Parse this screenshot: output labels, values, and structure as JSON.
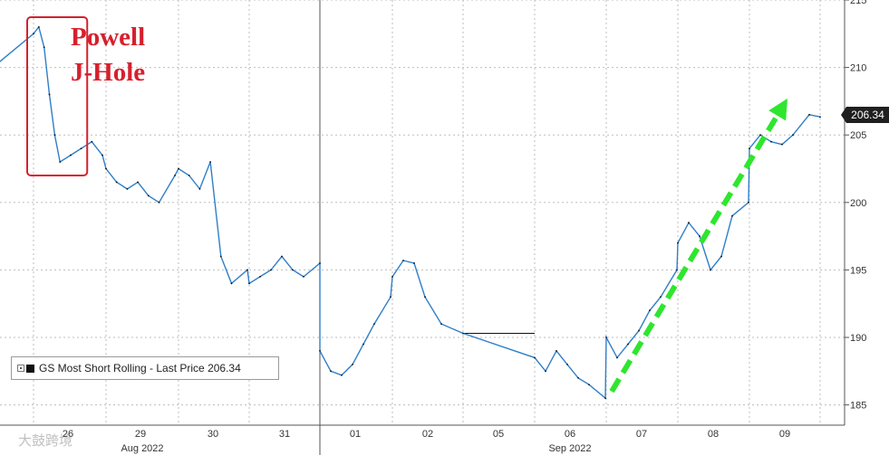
{
  "chart_data": {
    "type": "line",
    "title": "",
    "xlabel": "",
    "ylabel": "",
    "ylim": [
      183.5,
      215
    ],
    "y_ticks": [
      185,
      190,
      195,
      200,
      205,
      210,
      215
    ],
    "y_axis_side": "right",
    "grid": true,
    "legend_position": "bottom-left",
    "x_tick_labels": [
      "26",
      "29",
      "30",
      "31",
      "01",
      "02",
      "05",
      "06",
      "07",
      "08",
      "09"
    ],
    "x_month_labels": [
      "Aug 2022",
      "Sep 2022"
    ],
    "series": [
      {
        "name": "GS Most Short Rolling - Last Price 206.34",
        "color": "#2f7fc8",
        "x": [
          "2022-08-25 10:00",
          "2022-08-25 12:00",
          "2022-08-25 14:00",
          "2022-08-25 15:00",
          "2022-08-25 16:00",
          "2022-08-26 09:30",
          "2022-08-26 10:00",
          "2022-08-26 10:30",
          "2022-08-26 11:00",
          "2022-08-26 11:30",
          "2022-08-26 12:00",
          "2022-08-26 13:00",
          "2022-08-26 14:00",
          "2022-08-26 15:00",
          "2022-08-26 16:00",
          "2022-08-29 09:30",
          "2022-08-29 10:30",
          "2022-08-29 11:30",
          "2022-08-29 12:30",
          "2022-08-29 13:30",
          "2022-08-29 14:30",
          "2022-08-29 16:00",
          "2022-08-30 09:30",
          "2022-08-30 10:30",
          "2022-08-30 11:30",
          "2022-08-30 12:30",
          "2022-08-30 13:30",
          "2022-08-30 14:30",
          "2022-08-30 16:00",
          "2022-08-31 09:30",
          "2022-08-31 10:30",
          "2022-08-31 11:30",
          "2022-08-31 12:30",
          "2022-08-31 13:30",
          "2022-08-31 14:30",
          "2022-08-31 16:00",
          "2022-09-01 09:30",
          "2022-09-01 10:30",
          "2022-09-01 11:30",
          "2022-09-01 12:30",
          "2022-09-01 13:30",
          "2022-09-01 14:30",
          "2022-09-01 16:00",
          "2022-09-02 09:30",
          "2022-09-02 10:30",
          "2022-09-02 11:30",
          "2022-09-02 12:30",
          "2022-09-02 14:00",
          "2022-09-02 16:00",
          "2022-09-06 09:30",
          "2022-09-06 10:30",
          "2022-09-06 11:30",
          "2022-09-06 12:30",
          "2022-09-06 13:30",
          "2022-09-06 14:30",
          "2022-09-06 16:00",
          "2022-09-07 09:30",
          "2022-09-07 10:30",
          "2022-09-07 11:30",
          "2022-09-07 12:30",
          "2022-09-07 13:30",
          "2022-09-07 14:30",
          "2022-09-07 16:00",
          "2022-09-08 09:30",
          "2022-09-08 10:30",
          "2022-09-08 11:30",
          "2022-09-08 12:30",
          "2022-09-08 13:30",
          "2022-09-08 14:30",
          "2022-09-08 16:00",
          "2022-09-09 09:30",
          "2022-09-09 10:30",
          "2022-09-09 11:30",
          "2022-09-09 12:30",
          "2022-09-09 13:30",
          "2022-09-09 15:00",
          "2022-09-09 16:00"
        ],
        "values": [
          209,
          210,
          210.2,
          209.6,
          210,
          212.5,
          213,
          211.5,
          208,
          205,
          203,
          203.5,
          204,
          204.5,
          203.5,
          202.5,
          201.5,
          201,
          201.5,
          200.5,
          200,
          202,
          202.5,
          202,
          201,
          203,
          196,
          194,
          195,
          194,
          194.5,
          195,
          196,
          195,
          194.5,
          195.5,
          189,
          187.5,
          187.2,
          188,
          189.5,
          191,
          193,
          194.5,
          195.7,
          195.5,
          193,
          191,
          190.3,
          188.5,
          187.5,
          189,
          188,
          187,
          186.5,
          185.5,
          190,
          188.5,
          189.5,
          190.5,
          192,
          193,
          195,
          197,
          198.5,
          197.5,
          195,
          196,
          199,
          200,
          204,
          205,
          204.5,
          204.3,
          205,
          206.5,
          206.34
        ]
      }
    ],
    "annotations": [
      {
        "type": "text",
        "lines": [
          "Powell",
          "J-Hole"
        ],
        "color": "#d6202d",
        "highlight_from": "2022-08-26 09:30",
        "highlight_to": "2022-08-26 12:00"
      },
      {
        "type": "arrow",
        "style": "dashed",
        "color": "#2ee62e",
        "from": [
          "2022-09-07 10:00",
          186
        ],
        "to": [
          "2022-09-09 13:00",
          207.7
        ]
      }
    ],
    "last_price_label": "206.34"
  },
  "watermark": "大鼓跨境"
}
